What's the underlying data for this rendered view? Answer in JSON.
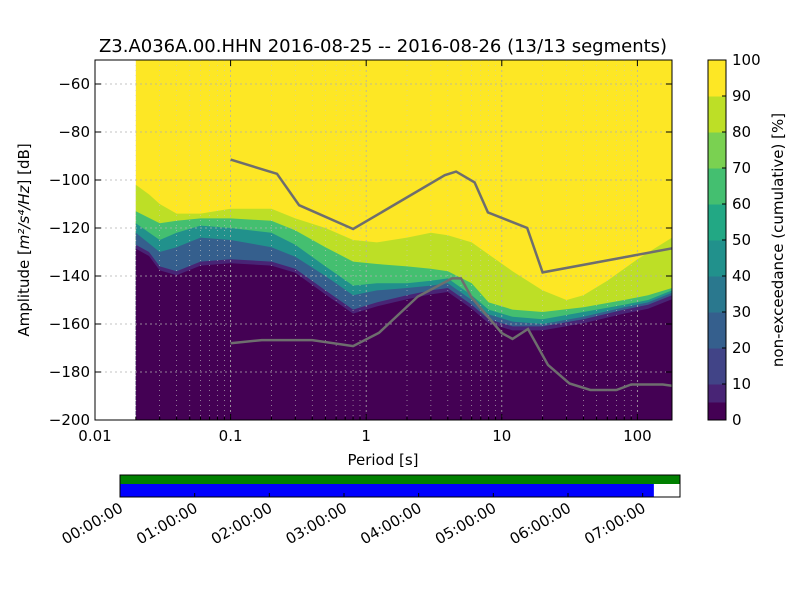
{
  "chart_data": {
    "type": "heatmap",
    "title": "Z3.A036A.00.HHN   2016-08-25 -- 2016-08-26  (13/13 segments)",
    "xlabel": "Period [s]",
    "ylabel_prefix": "Amplitude [",
    "ylabel_units": "m²/s⁴/Hz",
    "ylabel_suffix": "] [dB]",
    "x_scale": "log",
    "xlim": [
      0.01,
      180
    ],
    "ylim": [
      -200,
      -50
    ],
    "x_ticks": [
      {
        "value": 0.01,
        "label": "0.01"
      },
      {
        "value": 0.1,
        "label": "0.1"
      },
      {
        "value": 1,
        "label": "1"
      },
      {
        "value": 10,
        "label": "10"
      },
      {
        "value": 100,
        "label": "100"
      }
    ],
    "y_ticks": [
      {
        "value": -60,
        "label": "−60"
      },
      {
        "value": -80,
        "label": "−80"
      },
      {
        "value": -100,
        "label": "−100"
      },
      {
        "value": -120,
        "label": "−120"
      },
      {
        "value": -140,
        "label": "−140"
      },
      {
        "value": -160,
        "label": "−160"
      },
      {
        "value": -180,
        "label": "−180"
      },
      {
        "value": -200,
        "label": "−200"
      }
    ],
    "grid": true,
    "data_period_min": 0.02,
    "colorbar": {
      "label": "non-exceedance (cumulative) [%]",
      "range": [
        0,
        100
      ],
      "ticks": [
        {
          "value": 0,
          "label": "0"
        },
        {
          "value": 10,
          "label": "10"
        },
        {
          "value": 20,
          "label": "20"
        },
        {
          "value": 30,
          "label": "30"
        },
        {
          "value": 40,
          "label": "40"
        },
        {
          "value": 50,
          "label": "50"
        },
        {
          "value": 60,
          "label": "60"
        },
        {
          "value": 70,
          "label": "70"
        },
        {
          "value": 80,
          "label": "80"
        },
        {
          "value": 90,
          "label": "90"
        },
        {
          "value": 100,
          "label": "100"
        }
      ],
      "colors": [
        "#440154",
        "#482475",
        "#414487",
        "#355f8d",
        "#2a788e",
        "#21918c",
        "#22a884",
        "#44bf70",
        "#7ad151",
        "#bddf26",
        "#fde725"
      ]
    },
    "nonexceedance_contours": [
      {
        "level": 10,
        "points": [
          [
            0.02,
            -127
          ],
          [
            0.025,
            -130
          ],
          [
            0.03,
            -136
          ],
          [
            0.04,
            -138
          ],
          [
            0.06,
            -134
          ],
          [
            0.1,
            -133
          ],
          [
            0.2,
            -134
          ],
          [
            0.3,
            -137
          ],
          [
            0.5,
            -146
          ],
          [
            0.8,
            -154
          ],
          [
            1.2,
            -151
          ],
          [
            2,
            -148
          ],
          [
            3,
            -146
          ],
          [
            4,
            -145
          ],
          [
            6,
            -152
          ],
          [
            8,
            -158
          ],
          [
            12,
            -161
          ],
          [
            20,
            -161
          ],
          [
            40,
            -158
          ],
          [
            80,
            -154
          ],
          [
            120,
            -152
          ],
          [
            180,
            -148
          ]
        ]
      },
      {
        "level": 30,
        "points": [
          [
            0.02,
            -122
          ],
          [
            0.03,
            -130
          ],
          [
            0.04,
            -128
          ],
          [
            0.06,
            -124
          ],
          [
            0.1,
            -125
          ],
          [
            0.2,
            -128
          ],
          [
            0.3,
            -132
          ],
          [
            0.5,
            -140
          ],
          [
            0.8,
            -148
          ],
          [
            1.2,
            -146
          ],
          [
            2,
            -145
          ],
          [
            3,
            -144
          ],
          [
            4,
            -143
          ],
          [
            6,
            -150
          ],
          [
            8,
            -156
          ],
          [
            12,
            -159
          ],
          [
            20,
            -160
          ],
          [
            40,
            -157
          ],
          [
            80,
            -153
          ],
          [
            120,
            -151
          ],
          [
            180,
            -147
          ]
        ]
      },
      {
        "level": 50,
        "points": [
          [
            0.02,
            -118
          ],
          [
            0.03,
            -125
          ],
          [
            0.04,
            -122
          ],
          [
            0.06,
            -119
          ],
          [
            0.1,
            -120
          ],
          [
            0.2,
            -122
          ],
          [
            0.3,
            -127
          ],
          [
            0.5,
            -136
          ],
          [
            0.8,
            -144
          ],
          [
            1.2,
            -143
          ],
          [
            2,
            -143
          ],
          [
            3,
            -142
          ],
          [
            4,
            -141
          ],
          [
            6,
            -148
          ],
          [
            8,
            -154
          ],
          [
            12,
            -157
          ],
          [
            20,
            -158
          ],
          [
            40,
            -155
          ],
          [
            80,
            -152
          ],
          [
            120,
            -150
          ],
          [
            180,
            -146
          ]
        ]
      },
      {
        "level": 70,
        "points": [
          [
            0.02,
            -113
          ],
          [
            0.03,
            -118
          ],
          [
            0.04,
            -117
          ],
          [
            0.06,
            -116
          ],
          [
            0.1,
            -116
          ],
          [
            0.2,
            -117
          ],
          [
            0.3,
            -121
          ],
          [
            0.5,
            -128
          ],
          [
            0.8,
            -134
          ],
          [
            1.2,
            -135
          ],
          [
            2,
            -136
          ],
          [
            3,
            -137
          ],
          [
            4,
            -138
          ],
          [
            6,
            -143
          ],
          [
            8,
            -151
          ],
          [
            12,
            -154
          ],
          [
            20,
            -155
          ],
          [
            40,
            -153
          ],
          [
            80,
            -150
          ],
          [
            120,
            -148
          ],
          [
            180,
            -145
          ]
        ]
      },
      {
        "level": 90,
        "points": [
          [
            0.02,
            -102
          ],
          [
            0.025,
            -106
          ],
          [
            0.03,
            -110
          ],
          [
            0.04,
            -114
          ],
          [
            0.06,
            -114
          ],
          [
            0.1,
            -112
          ],
          [
            0.2,
            -112
          ],
          [
            0.3,
            -116
          ],
          [
            0.5,
            -120
          ],
          [
            0.8,
            -125
          ],
          [
            1.2,
            -126
          ],
          [
            2,
            -124
          ],
          [
            3,
            -122
          ],
          [
            4,
            -123
          ],
          [
            6,
            -126
          ],
          [
            8,
            -131
          ],
          [
            12,
            -138
          ],
          [
            20,
            -146
          ],
          [
            30,
            -150
          ],
          [
            40,
            -148
          ],
          [
            60,
            -142
          ],
          [
            100,
            -133
          ],
          [
            180,
            -124
          ]
        ]
      }
    ],
    "reference_curves": [
      {
        "points": [
          [
            0.1,
            -91.5
          ],
          [
            0.22,
            -97.4
          ],
          [
            0.32,
            -110.5
          ],
          [
            0.8,
            -120.4
          ],
          [
            3.8,
            -98
          ],
          [
            4.6,
            -96.5
          ],
          [
            6.3,
            -101
          ],
          [
            7.9,
            -113.5
          ],
          [
            15.4,
            -120
          ],
          [
            20,
            -138.5
          ],
          [
            180,
            -128.5
          ]
        ]
      },
      {
        "points": [
          [
            0.1,
            -168
          ],
          [
            0.17,
            -166.7
          ],
          [
            0.4,
            -166.7
          ],
          [
            0.8,
            -169.2
          ],
          [
            1.24,
            -163.7
          ],
          [
            2.4,
            -148.6
          ],
          [
            4.3,
            -141
          ],
          [
            5.0,
            -141
          ],
          [
            6.0,
            -149
          ],
          [
            10,
            -163.8
          ],
          [
            12,
            -166.2
          ],
          [
            15.6,
            -162.1
          ],
          [
            21.9,
            -177.1
          ],
          [
            31.6,
            -184.8
          ],
          [
            45,
            -187.5
          ],
          [
            70,
            -187.5
          ],
          [
            90,
            -185.2
          ],
          [
            154,
            -185.2
          ],
          [
            180,
            -185.7
          ]
        ]
      }
    ]
  },
  "timeline": {
    "labels": [
      "00:00:00",
      "01:00:00",
      "02:00:00",
      "03:00:00",
      "04:00:00",
      "05:00:00",
      "06:00:00",
      "07:00:00"
    ],
    "total_hours": 7.5,
    "data_available_end_hours": 7.5,
    "processed_end_hours": 7.15,
    "available_color": "#008000",
    "processed_color": "#0000ff"
  }
}
